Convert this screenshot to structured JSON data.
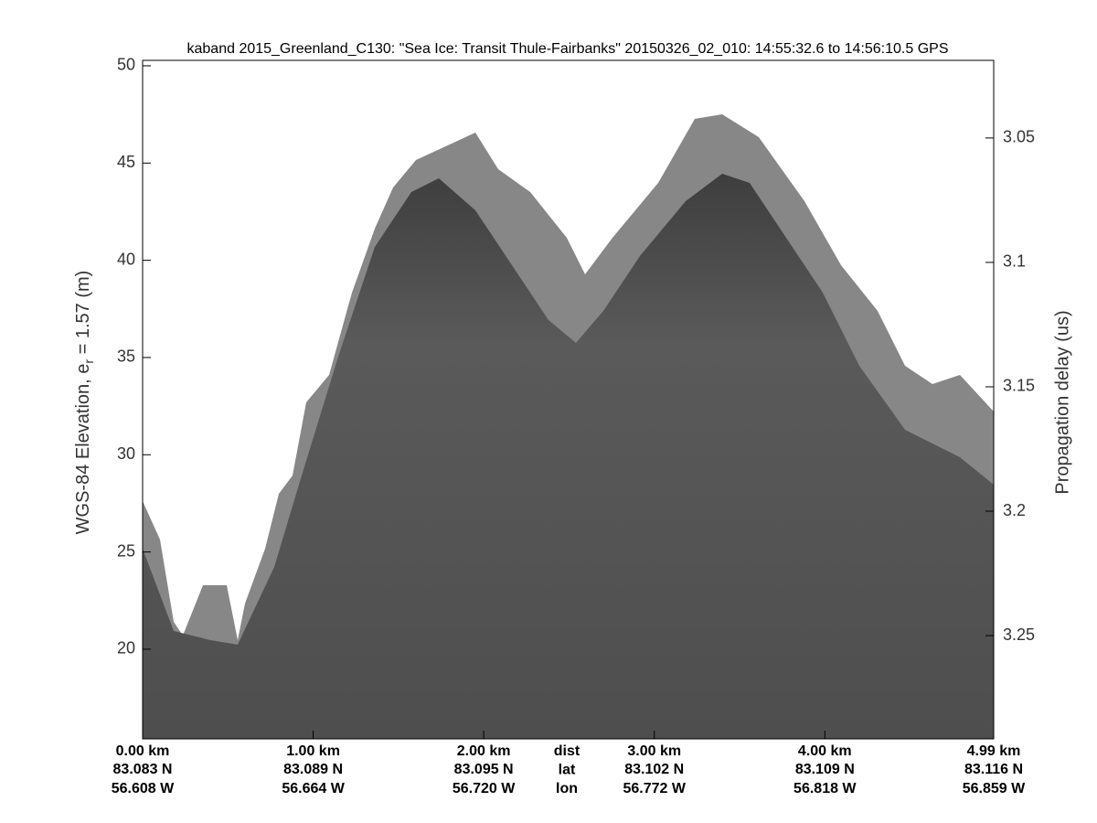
{
  "chart_data": {
    "type": "echogram",
    "title": "kaband 2015_Greenland_C130: \"Sea Ice: Transit Thule-Fairbanks\"  20150326_02_010: 14:55:32.6 to 14:56:10.5 GPS",
    "ylabel": {
      "text": "WGS-84 Elevation, e",
      "subscript": "r",
      "rest": " = 1.57 (m)"
    },
    "y2label": "Propagation delay (us)",
    "xlim": [
      0,
      4.99
    ],
    "xticks": [
      {
        "value": 0,
        "label": "0.00 km"
      },
      {
        "value": 1,
        "label": "1.00 km"
      },
      {
        "value": 2,
        "label": "2.00 km"
      },
      {
        "value": 3,
        "label": "3.00 km"
      },
      {
        "value": 4,
        "label": "4.00 km"
      },
      {
        "value": 4.99,
        "label": "4.99 km"
      }
    ],
    "lat_labels": [
      "83.083 N",
      "83.089 N",
      "83.095 N",
      "83.102 N",
      "83.109 N",
      "83.116 N"
    ],
    "lon_labels": [
      "56.608 W",
      "56.664 W",
      "56.720 W",
      "56.772 W",
      "56.818 W",
      "56.859 W"
    ],
    "row_labels": [
      "dist",
      "lat",
      "lon"
    ],
    "ylim": [
      15.39,
      50.28
    ],
    "yticks": [
      20,
      25,
      30,
      35,
      40,
      45,
      50
    ],
    "y2lim": [
      3.2915,
      3.0188
    ],
    "y2ticks": [
      3.05,
      3.1,
      3.15,
      3.2,
      3.25
    ]
  }
}
